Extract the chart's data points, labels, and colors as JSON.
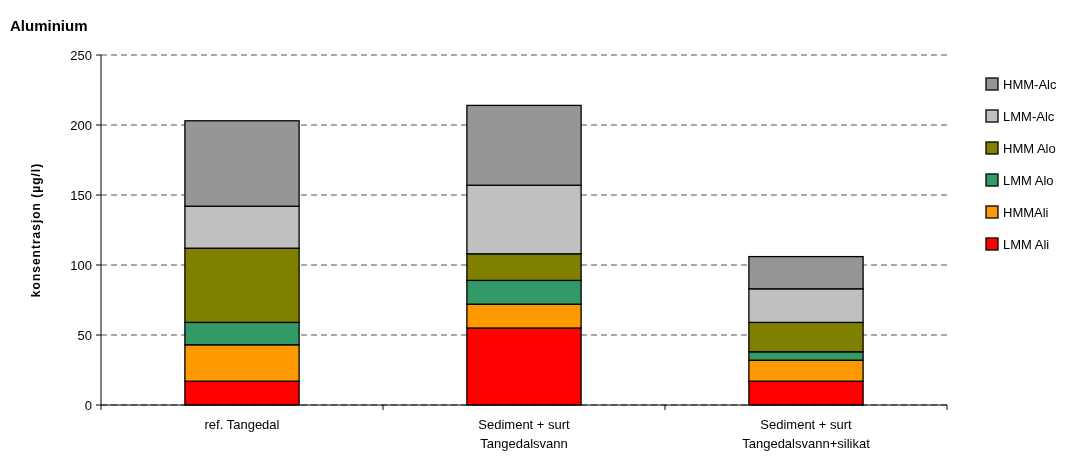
{
  "chart_data": {
    "type": "bar",
    "title": "Aluminium",
    "ylabel": "konsentrasjon (µg/l)",
    "stacked": true,
    "categories": [
      "ref. Tangedal",
      "Sediment + surt Tangedalsvann",
      "Sediment + surt Tangedalsvann+silikat"
    ],
    "series": [
      {
        "name": "LMM Ali",
        "color": "#ff0000",
        "values": [
          17,
          55,
          17
        ]
      },
      {
        "name": "HMMAli",
        "color": "#ff9900",
        "values": [
          26,
          17,
          15
        ]
      },
      {
        "name": "LMM Alo",
        "color": "#339966",
        "values": [
          16,
          17,
          6
        ]
      },
      {
        "name": "HMM Alo",
        "color": "#808000",
        "values": [
          53,
          19,
          21
        ]
      },
      {
        "name": "LMM-Alc",
        "color": "#c0c0c0",
        "values": [
          30,
          49,
          24
        ]
      },
      {
        "name": "HMM-Alc",
        "color": "#969696",
        "values": [
          61,
          57,
          23
        ]
      }
    ],
    "ylim": [
      0,
      250
    ],
    "yticks": [
      0,
      50,
      100,
      150,
      200,
      250
    ],
    "grid": "y",
    "legend": "right"
  }
}
